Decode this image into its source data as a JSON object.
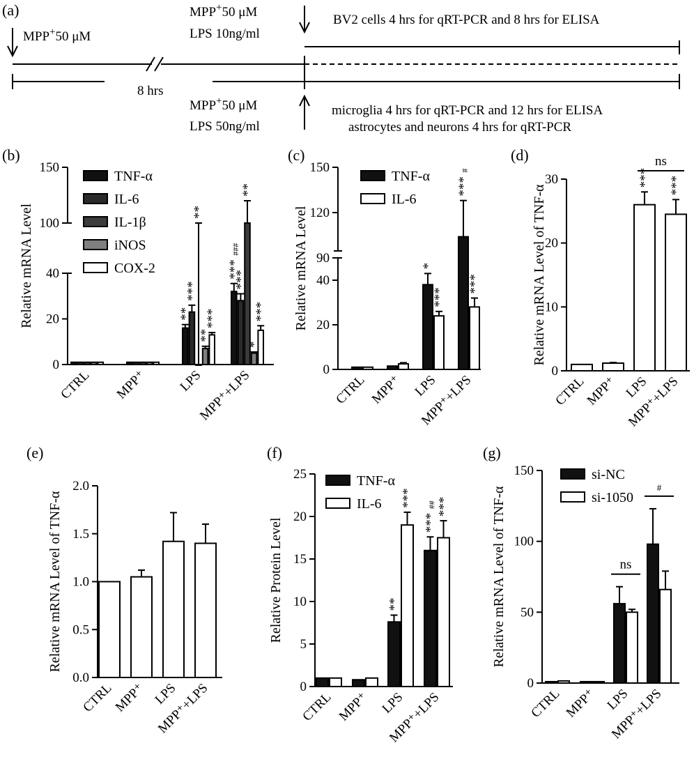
{
  "panel_a": {
    "label": "(a)",
    "mpp_left": "MPP",
    "mpp_left_conc": "50 μM",
    "mpp_top": "MPP",
    "mpp_top_conc": "50 μM",
    "lps_top": "LPS 10ng/ml",
    "mpp_bottom": "MPP",
    "mpp_bottom_conc": "50 μM",
    "lps_bottom": "LPS 50ng/ml",
    "interval": "8 hrs",
    "bv2_note": "BV2 cells  4 hrs for qRT-PCR and 8 hrs for ELISA",
    "microglia_note": "microglia 4 hrs for qRT-PCR and 12 hrs for ELISA",
    "astro_note": "astrocytes and neurons 4 hrs for qRT-PCR",
    "plus": "+"
  },
  "chart_data": [
    {
      "panel": "(b)",
      "type": "bar",
      "ylabel": "Relative mRNA Level",
      "categories": [
        "CTRL",
        "MPP⁺",
        "LPS",
        "MPP⁺+LPS"
      ],
      "series": [
        {
          "name": "TNF-α",
          "values": [
            1,
            1,
            16,
            32
          ],
          "errors": [
            0,
            0,
            1.5,
            3.5
          ]
        },
        {
          "name": "IL-6",
          "values": [
            1,
            1,
            23,
            28
          ],
          "errors": [
            0,
            0,
            3,
            3
          ]
        },
        {
          "name": "IL-1β",
          "values": [
            1,
            1,
            80,
            100
          ],
          "errors": [
            0,
            0,
            20,
            20
          ]
        },
        {
          "name": "iNOS",
          "values": [
            1,
            1,
            7,
            5
          ],
          "errors": [
            0,
            0,
            1,
            0.5
          ]
        },
        {
          "name": "COX-2",
          "values": [
            1,
            1,
            13,
            15
          ],
          "errors": [
            0,
            0,
            1,
            2
          ]
        }
      ],
      "yticks": [
        "0",
        "20",
        "40",
        "100",
        "150"
      ],
      "annotations": [
        {
          "cat": 2,
          "series": 0,
          "text": "**"
        },
        {
          "cat": 2,
          "series": 1,
          "text": "***"
        },
        {
          "cat": 2,
          "series": 2,
          "text": "**"
        },
        {
          "cat": 2,
          "series": 3,
          "text": "**"
        },
        {
          "cat": 2,
          "series": 4,
          "text": "***"
        },
        {
          "cat": 3,
          "series": 0,
          "text": "***"
        },
        {
          "cat": 3,
          "series": 1,
          "text": "***"
        },
        {
          "cat": 3,
          "series": 2,
          "text": "**"
        },
        {
          "cat": 3,
          "series": 3,
          "text": "*"
        },
        {
          "cat": 3,
          "series": 4,
          "text": "***"
        },
        {
          "cat": 3,
          "series": 0,
          "text": "###"
        }
      ]
    },
    {
      "panel": "(c)",
      "type": "bar",
      "ylabel": "Relative mRNA Level",
      "categories": [
        "CTRL",
        "MPP⁺",
        "LPS",
        "MPP⁺+LPS"
      ],
      "series": [
        {
          "name": "TNF-α",
          "values": [
            1,
            1.5,
            38,
            104
          ],
          "errors": [
            0,
            0,
            5,
            24
          ]
        },
        {
          "name": "IL-6",
          "values": [
            1,
            2.5,
            24,
            28
          ],
          "errors": [
            0,
            0.5,
            2,
            4
          ]
        }
      ],
      "yticks": [
        "0",
        "20",
        "40",
        "90",
        "120",
        "150"
      ],
      "annotations": [
        {
          "cat": 2,
          "series": 0,
          "text": "*"
        },
        {
          "cat": 2,
          "series": 1,
          "text": "***"
        },
        {
          "cat": 3,
          "series": 0,
          "text": "***"
        },
        {
          "cat": 3,
          "series": 0,
          "text": "#"
        },
        {
          "cat": 3,
          "series": 1,
          "text": "***"
        }
      ]
    },
    {
      "panel": "(d)",
      "type": "bar",
      "ylabel": "Relative mRNA Level of TNF-α",
      "categories": [
        "CTRL",
        "MPP⁺",
        "LPS",
        "MPP⁺+LPS"
      ],
      "series": [
        {
          "values": [
            1,
            1.2,
            26,
            24.5
          ],
          "errors": [
            0,
            0.1,
            2,
            2.3
          ]
        }
      ],
      "ylim": [
        0,
        30
      ],
      "yticks": [
        "0",
        "10",
        "20",
        "30"
      ],
      "annotations": [
        {
          "cat": 2,
          "text": "***"
        },
        {
          "cat": 3,
          "text": "***"
        },
        {
          "text": "ns"
        }
      ]
    },
    {
      "panel": "(e)",
      "type": "bar",
      "ylabel": "Relative mRNA Level of TNF-α",
      "categories": [
        "CTRL",
        "MPP⁺",
        "LPS",
        "MPP⁺+LPS"
      ],
      "series": [
        {
          "values": [
            1.0,
            1.05,
            1.42,
            1.4
          ],
          "errors": [
            0,
            0.07,
            0.3,
            0.2
          ]
        }
      ],
      "ylim": [
        0,
        2.0
      ],
      "yticks": [
        "0.0",
        "0.5",
        "1.0",
        "1.5",
        "2.0"
      ]
    },
    {
      "panel": "(f)",
      "type": "bar",
      "ylabel": "Relative Protein Level",
      "categories": [
        "CTRL",
        "MPP⁺",
        "LPS",
        "MPP⁺+LPS"
      ],
      "series": [
        {
          "name": "TNF-α",
          "values": [
            1,
            0.8,
            7.6,
            16
          ],
          "errors": [
            0,
            0,
            0.8,
            1.6
          ]
        },
        {
          "name": "IL-6",
          "values": [
            1,
            1.0,
            19,
            17.5
          ],
          "errors": [
            0,
            0,
            1.5,
            2
          ]
        }
      ],
      "ylim": [
        0,
        25
      ],
      "yticks": [
        "0",
        "5",
        "10",
        "15",
        "20",
        "25"
      ],
      "annotations": [
        {
          "cat": 2,
          "series": 0,
          "text": "**"
        },
        {
          "cat": 2,
          "series": 1,
          "text": "***"
        },
        {
          "cat": 3,
          "series": 0,
          "text": "***"
        },
        {
          "cat": 3,
          "series": 0,
          "text": "##"
        },
        {
          "cat": 3,
          "series": 1,
          "text": "***"
        }
      ]
    },
    {
      "panel": "(g)",
      "type": "bar",
      "ylabel": "Relative mRNA Level of TNF-α",
      "categories": [
        "CTRL",
        "MPP⁺",
        "LPS",
        "MPP⁺+LPS"
      ],
      "series": [
        {
          "name": "si-NC",
          "values": [
            1,
            1,
            56,
            98
          ],
          "errors": [
            0,
            0,
            12,
            25
          ]
        },
        {
          "name": "si-1050",
          "values": [
            1.5,
            1,
            50,
            66
          ],
          "errors": [
            0,
            0,
            2,
            13
          ]
        }
      ],
      "ylim": [
        0,
        150
      ],
      "yticks": [
        "0",
        "50",
        "100",
        "150"
      ],
      "annotations": [
        {
          "cat": 2,
          "text": "ns"
        },
        {
          "cat": 3,
          "text": "#"
        }
      ]
    }
  ]
}
